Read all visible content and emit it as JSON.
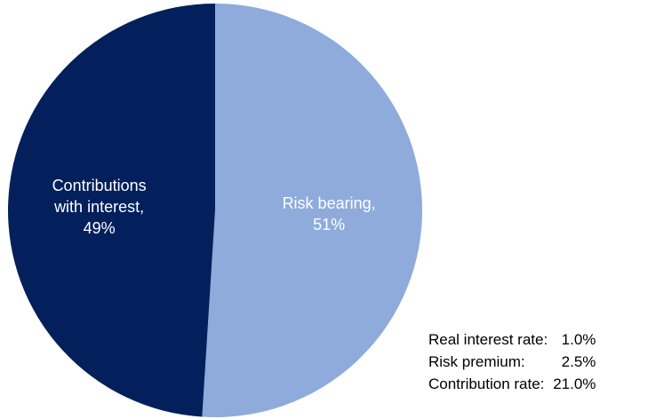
{
  "chart_data": {
    "type": "pie",
    "slices": [
      {
        "label_lines": [
          "Risk bearing,",
          "51%"
        ],
        "value": 51,
        "color": "#8eabdc",
        "label_color": "#ffffff"
      },
      {
        "label_lines": [
          "Contributions",
          "with interest,",
          "49%"
        ],
        "value": 49,
        "color": "#03205c",
        "label_color": "#ffffff"
      }
    ],
    "start_angle_deg": 0,
    "direction": "clockwise",
    "title": "",
    "legend": "none"
  },
  "assumptions": {
    "rows": [
      {
        "label": "Real interest rate:",
        "value": "1.0%"
      },
      {
        "label": "Risk premium:",
        "value": "2.5%"
      },
      {
        "label": "Contribution rate:",
        "value": "21.0%"
      }
    ]
  }
}
